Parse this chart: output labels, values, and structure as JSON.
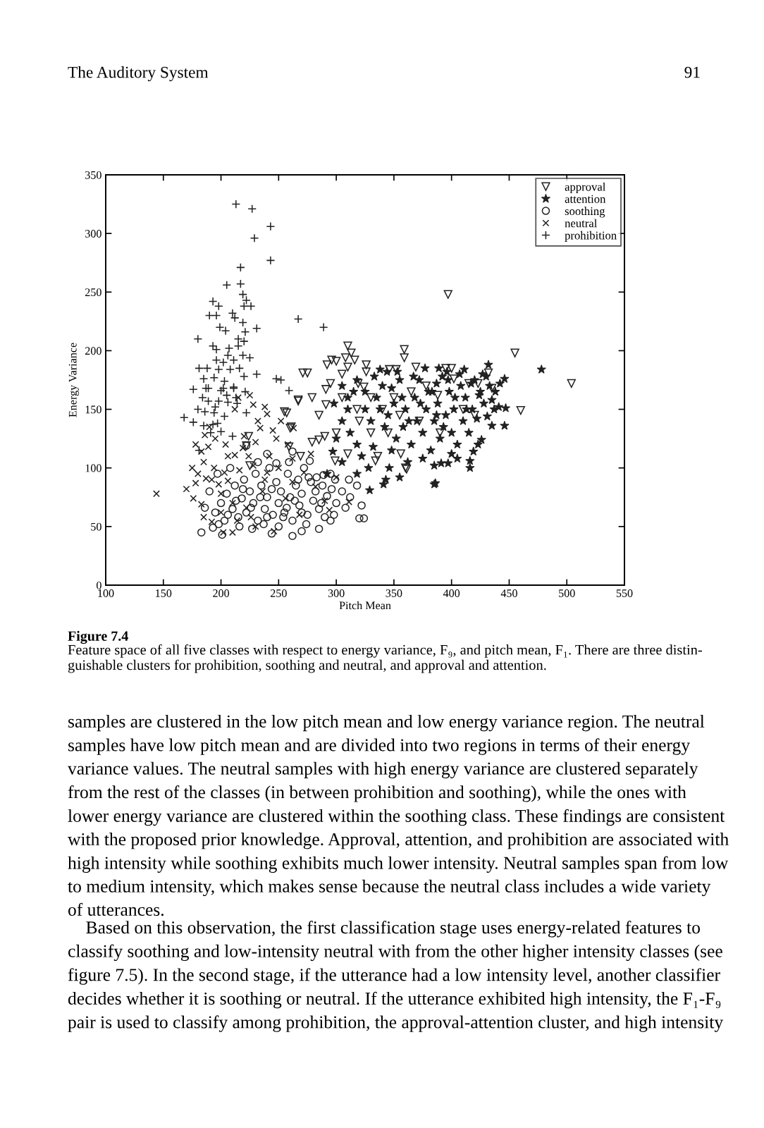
{
  "chart_data": {
    "type": "scatter",
    "title": "Figure 7.4",
    "subtitle": "Feature space of all five classes with respect to energy variance, F₉, and pitch mean, F₁. There are three distin-\nguishable clusters for prohibition, soothing and neutral, and approval and attention.",
    "xlabel": "Pitch Mean",
    "ylabel": "Energy Variance",
    "xlim": [
      100,
      550
    ],
    "ylim": [
      0,
      350
    ],
    "xticks": [
      100,
      150,
      200,
      250,
      300,
      350,
      400,
      450,
      500,
      550
    ],
    "yticks": [
      0,
      50,
      100,
      150,
      200,
      250,
      300,
      350
    ],
    "grid": false,
    "legend": "top right",
    "annotations": [
      "The Auditory System",
      "91",
      "samples are clustered in the low pitch mean and low energy variance region. The neutral\nsamples have low pitch mean and are divided into two regions in terms of their energy\nvariance values. The neutral samples with high energy variance are clustered separately\nfrom the rest of the classes (in between prohibition and soothing), while the ones with\nlower energy variance are clustered within the soothing class. These findings are consistent\nwith the proposed prior knowledge. Approval, attention, and prohibition are associated with\nhigh intensity while soothing exhibits much lower intensity. Neutral samples span from low\nto medium intensity, which makes sense because the neutral class includes a wide variety\nof utterances.",
      "Based on this observation, the first classification stage uses energy-related features to\nclassify soothing and low-intensity neutral with from the other higher intensity classes (see\nfigure 7.5). In the second stage, if the utterance had a low intensity level, another classifier\ndecides whether it is soothing or neutral. If the utterance exhibited high intensity, the F₁-F₉\npair is used to classify among prohibition, the approval-attention cluster, and high intensity"
    ],
    "series": [
      {
        "name": "approval",
        "color": "#222222",
        "marker": "triangle-down",
        "x": [
          310,
          300,
          308,
          310,
          326,
          326,
          271,
          275,
          295,
          319,
          324,
          397,
          359,
          359,
          455,
          432,
          504,
          352,
          346,
          369,
          395,
          415,
          423,
          460,
          360,
          356,
          267,
          279,
          291,
          255,
          261,
          291,
          279,
          285,
          290,
          300,
          224,
          259,
          269,
          336,
          330,
          320,
          299,
          310,
          296,
          313,
          340,
          350,
          365,
          378,
          388,
          402,
          410,
          420,
          330,
          318,
          345,
          305,
          285,
          372,
          355,
          390,
          400,
          435,
          334,
          361,
          222,
          225,
          260,
          267,
          257,
          305,
          292,
          316
        ],
        "values": [
          204,
          191,
          194,
          186,
          188,
          182,
          181,
          181,
          172,
          172,
          169,
          248,
          201,
          194,
          198,
          181,
          172,
          184,
          184,
          186,
          185,
          172,
          172,
          149,
          100,
          112,
          158,
          160,
          167,
          148,
          135,
          154,
          122,
          124,
          127,
          130,
          127,
          118,
          110,
          110,
          130,
          140,
          106,
          112,
          192,
          198,
          150,
          160,
          165,
          170,
          162,
          176,
          150,
          145,
          160,
          150,
          130,
          160,
          145,
          140,
          145,
          130,
          185,
          168,
          106,
          99,
          119,
          102,
          134,
          157,
          147,
          180,
          188,
          192
        ]
      },
      {
        "name": "attention",
        "color": "#222222",
        "marker": "star",
        "x": [
          386,
          416,
          416,
          400,
          405,
          391,
          385,
          397,
          419,
          423,
          426,
          435,
          446,
          431,
          441,
          447,
          424,
          435,
          346,
          343,
          341,
          478,
          446,
          432,
          411,
          389,
          396,
          387,
          338,
          344,
          325,
          330,
          335,
          340,
          345,
          350,
          352,
          355,
          358,
          360,
          365,
          368,
          370,
          372,
          375,
          378,
          380,
          382,
          385,
          388,
          390,
          392,
          395,
          398,
          400,
          402,
          405,
          408,
          410,
          412,
          415,
          418,
          420,
          422,
          425,
          428,
          430,
          433,
          438,
          442,
          312,
          318,
          322,
          328,
          300,
          305,
          315,
          348,
          362,
          375,
          332,
          310,
          355,
          298,
          305,
          310,
          318,
          325,
          333,
          338,
          342,
          348,
          353,
          357,
          363,
          367,
          373,
          377,
          383,
          387,
          393,
          397,
          403,
          407,
          413,
          417,
          427,
          437,
          329,
          385,
          292,
          297,
          305,
          318
        ],
        "values": [
          87,
          100,
          106,
          112,
          108,
          104,
          102,
          104,
          114,
          120,
          124,
          136,
          136,
          144,
          152,
          151,
          162,
          158,
          100,
          90,
          86,
          184,
          176,
          188,
          184,
          185,
          182,
          172,
          184,
          182,
          150,
          140,
          160,
          170,
          145,
          155,
          125,
          175,
          135,
          150,
          120,
          160,
          140,
          175,
          130,
          150,
          165,
          115,
          140,
          155,
          125,
          178,
          145,
          165,
          130,
          150,
          120,
          170,
          140,
          160,
          130,
          150,
          175,
          142,
          165,
          155,
          178,
          170,
          165,
          172,
          130,
          120,
          110,
          100,
          125,
          140,
          165,
          115,
          105,
          108,
          118,
          150,
          92,
          155,
          170,
          160,
          175,
          165,
          178,
          150,
          135,
          168,
          182,
          160,
          140,
          178,
          155,
          185,
          165,
          145,
          135,
          175,
          160,
          180,
          150,
          172,
          180,
          150,
          81,
          86,
          95,
          114,
          105,
          95
        ]
      },
      {
        "name": "soothing",
        "color": "#222222",
        "marker": "circle",
        "x": [
          183,
          193,
          201,
          244,
          262,
          270,
          295,
          320,
          324,
          322,
          299,
          311,
          298,
          222,
          259,
          277,
          283,
          289,
          267,
          195,
          200,
          205,
          210,
          212,
          215,
          218,
          220,
          222,
          225,
          228,
          230,
          232,
          235,
          238,
          240,
          242,
          245,
          248,
          250,
          252,
          255,
          258,
          260,
          262,
          265,
          268,
          270,
          272,
          275,
          278,
          280,
          282,
          285,
          288,
          290,
          292,
          295,
          300,
          305,
          308,
          312,
          318,
          190,
          197,
          208,
          216,
          227,
          237,
          250,
          257,
          274,
          285,
          203,
          262,
          240,
          232,
          248,
          213,
          219,
          226,
          234,
          244,
          254,
          264,
          276,
          287,
          296,
          206,
          198,
          186,
          240,
          270
        ],
        "values": [
          45,
          49,
          43,
          44,
          42,
          46,
          55,
          57,
          57,
          68,
          90,
          90,
          60,
          119,
          105,
          106,
          92,
          94,
          90,
          62,
          70,
          78,
          65,
          85,
          58,
          74,
          90,
          62,
          80,
          70,
          95,
          55,
          85,
          65,
          75,
          100,
          60,
          88,
          70,
          80,
          62,
          95,
          75,
          55,
          85,
          68,
          78,
          100,
          60,
          88,
          72,
          80,
          65,
          85,
          58,
          76,
          95,
          70,
          80,
          66,
          75,
          85,
          80,
          95,
          100,
          50,
          48,
          52,
          50,
          66,
          52,
          48,
          55,
          114,
          112,
          105,
          104,
          72,
          82,
          66,
          75,
          82,
          58,
          72,
          92,
          70,
          82,
          60,
          52,
          66,
          58,
          62
        ]
      },
      {
        "name": "neutral",
        "color": "#222222",
        "marker": "cross",
        "x": [
          144,
          228,
          238,
          240,
          212,
          234,
          220,
          204,
          189,
          183,
          219,
          212,
          206,
          224,
          242,
          258,
          263,
          180,
          187,
          192,
          178,
          198,
          206,
          176,
          183,
          185,
          192,
          210,
          246,
          311,
          215,
          225,
          195,
          186,
          230,
          248,
          250,
          240,
          228,
          216,
          200,
          210,
          222,
          236,
          262,
          272,
          282,
          290,
          268,
          226,
          200,
          175,
          170,
          252,
          245,
          232,
          262,
          278,
          300,
          294,
          185,
          194,
          203,
          178,
          190,
          238,
          256,
          214,
          230,
          202
        ],
        "values": [
          78,
          154,
          152,
          146,
          150,
          134,
          127,
          120,
          118,
          114,
          117,
          111,
          110,
          110,
          110,
          120,
          134,
          95,
          91,
          90,
          87,
          86,
          89,
          74,
          69,
          58,
          54,
          45,
          46,
          71,
          160,
          162,
          125,
          128,
          122,
          125,
          100,
          96,
          102,
          98,
          78,
          70,
          66,
          80,
          88,
          96,
          84,
          72,
          60,
          58,
          62,
          100,
          82,
          140,
          132,
          140,
          108,
          112,
          92,
          64,
          105,
          100,
          96,
          120,
          135,
          90,
          74,
          55,
          50,
          45
        ]
      },
      {
        "name": "prohibition",
        "color": "#222222",
        "marker": "plus",
        "x": [
          213,
          227,
          243,
          229,
          243,
          217,
          205,
          217,
          219,
          222,
          220,
          226,
          193,
          198,
          190,
          196,
          210,
          212,
          219,
          267,
          289,
          231,
          199,
          204,
          221,
          180,
          215,
          220,
          193,
          196,
          207,
          215,
          206,
          219,
          225,
          196,
          202,
          211,
          181,
          188,
          198,
          208,
          216,
          231,
          220,
          185,
          194,
          203,
          248,
          252,
          259,
          189,
          202,
          211,
          176,
          187,
          200,
          211,
          221,
          189,
          198,
          206,
          214,
          222,
          168,
          176,
          194,
          197,
          185,
          193,
          200,
          210,
          181,
          184,
          205,
          195,
          186,
          213,
          180,
          203,
          191
        ],
        "values": [
          325,
          321,
          306,
          296,
          277,
          271,
          256,
          257,
          248,
          243,
          238,
          238,
          242,
          238,
          230,
          230,
          232,
          228,
          224,
          227,
          220,
          219,
          220,
          217,
          216,
          210,
          210,
          208,
          204,
          201,
          202,
          204,
          196,
          196,
          194,
          192,
          190,
          192,
          185,
          185,
          184,
          184,
          185,
          180,
          178,
          176,
          177,
          174,
          176,
          175,
          166,
          168,
          168,
          169,
          167,
          168,
          166,
          168,
          165,
          157,
          157,
          156,
          155,
          147,
          143,
          139,
          147,
          138,
          136,
          137,
          131,
          127,
          115,
          160,
          162,
          152,
          148,
          160,
          150,
          144,
          130
        ]
      }
    ]
  }
}
